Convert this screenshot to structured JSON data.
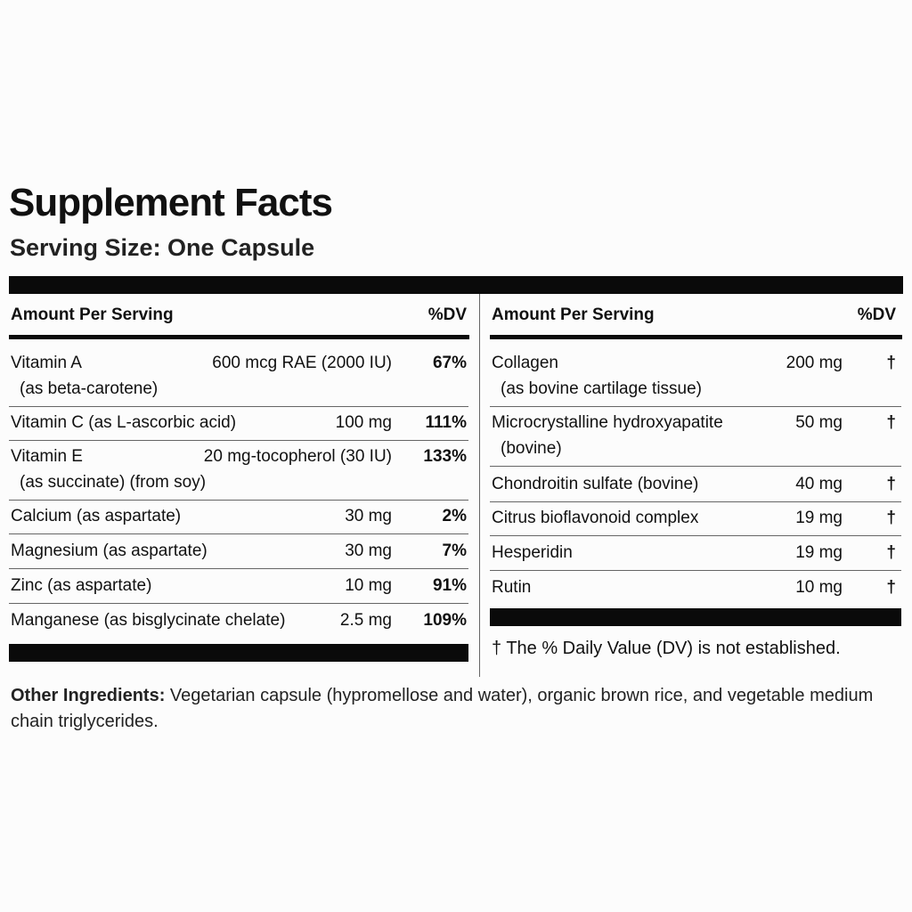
{
  "header": {
    "title": "Supplement Facts",
    "serving_size": "Serving Size: One Capsule"
  },
  "left_table": {
    "columns": [
      "Amount Per Serving",
      "%DV"
    ],
    "rows": [
      {
        "name": "Vitamin A",
        "amount": "600 mcg RAE (2000 IU)",
        "dv": "67%",
        "sub": "(as beta-carotene)"
      },
      {
        "name": "Vitamin C (as L-ascorbic acid)",
        "amount": "100 mg",
        "dv": "111%"
      },
      {
        "name": "Vitamin E",
        "amount": "20 mg-tocopherol (30 IU)",
        "dv": "133%",
        "sub": "(as succinate) (from soy)"
      },
      {
        "name": "Calcium (as aspartate)",
        "amount": "30 mg",
        "dv": "2%"
      },
      {
        "name": "Magnesium (as aspartate)",
        "amount": "30 mg",
        "dv": "7%"
      },
      {
        "name": "Zinc (as aspartate)",
        "amount": "10 mg",
        "dv": "91%"
      },
      {
        "name": "Manganese (as bisglycinate chelate)",
        "amount": "2.5 mg",
        "dv": "109%"
      }
    ]
  },
  "right_table": {
    "columns": [
      "Amount Per Serving",
      "%DV"
    ],
    "rows": [
      {
        "name": "Collagen",
        "amount": "200 mg",
        "dv": "†",
        "sub": "(as bovine cartilage tissue)"
      },
      {
        "name": "Microcrystalline hydroxyapatite",
        "amount": "50 mg",
        "dv": "†",
        "sub": "(bovine)"
      },
      {
        "name": "Chondroitin sulfate (bovine)",
        "amount": "40 mg",
        "dv": "†"
      },
      {
        "name": "Citrus bioflavonoid complex",
        "amount": "19 mg",
        "dv": "†"
      },
      {
        "name": "Hesperidin",
        "amount": "19 mg",
        "dv": "†"
      },
      {
        "name": "Rutin",
        "amount": "10 mg",
        "dv": "†"
      }
    ],
    "footnote": "† The % Daily Value (DV) is not established."
  },
  "other_ingredients": {
    "label": "Other Ingredients:",
    "text": "Vegetarian capsule (hypromellose and water), organic brown rice, and vegetable medium chain triglycerides."
  }
}
